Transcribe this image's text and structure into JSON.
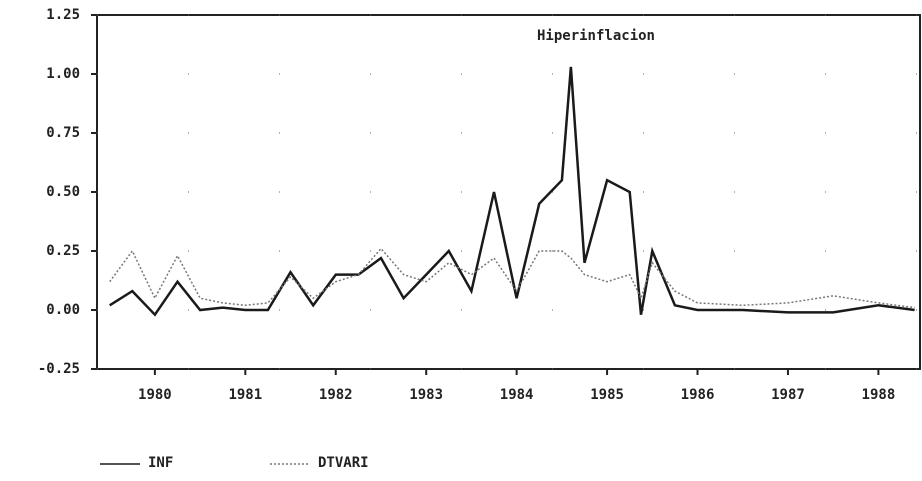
{
  "chart_data": {
    "type": "line",
    "title": "Hiperinflacion",
    "x": [
      1979.5,
      1979.75,
      1980,
      1980.25,
      1980.5,
      1980.75,
      1981,
      1981.25,
      1981.5,
      1981.75,
      1982,
      1982.25,
      1982.5,
      1982.75,
      1983,
      1983.25,
      1983.5,
      1983.75,
      1984,
      1984.25,
      1984.5,
      1984.6,
      1984.75,
      1985,
      1985.25,
      1985.375,
      1985.5,
      1985.75,
      1986,
      1986.5,
      1987,
      1987.5,
      1988,
      1988.4
    ],
    "series": [
      {
        "name": "INF",
        "color": "#1a1a1a",
        "style": "solid",
        "values": [
          0.02,
          0.08,
          -0.02,
          0.12,
          0.0,
          0.01,
          0.0,
          0.0,
          0.16,
          0.02,
          0.15,
          0.15,
          0.22,
          0.05,
          0.15,
          0.25,
          0.08,
          0.5,
          0.05,
          0.45,
          0.55,
          1.03,
          0.2,
          0.55,
          0.5,
          -0.02,
          0.25,
          0.02,
          0.0,
          0.0,
          -0.01,
          -0.01,
          0.02,
          0.0
        ]
      },
      {
        "name": "DTVARI",
        "color": "#777777",
        "style": "dotted",
        "values": [
          0.12,
          0.25,
          0.05,
          0.23,
          0.05,
          0.03,
          0.02,
          0.03,
          0.14,
          0.05,
          0.12,
          0.15,
          0.26,
          0.15,
          0.12,
          0.2,
          0.15,
          0.22,
          0.08,
          0.25,
          0.25,
          0.22,
          0.15,
          0.12,
          0.15,
          0.05,
          0.2,
          0.08,
          0.03,
          0.02,
          0.03,
          0.06,
          0.03,
          0.01
        ]
      }
    ],
    "xlim": [
      1979.36,
      1988.46
    ],
    "xticks": [
      1980,
      1981,
      1982,
      1983,
      1984,
      1985,
      1986,
      1987,
      1988
    ],
    "ylim": [
      -0.25,
      1.25
    ],
    "yticks": [
      -0.25,
      {
        "value": 0,
        "label": "0.00"
      },
      0.25,
      {
        "value": 0.5,
        "label": "0.50"
      },
      0.75,
      {
        "value": 1,
        "label": "1.00"
      },
      1.25
    ],
    "grid": true
  }
}
